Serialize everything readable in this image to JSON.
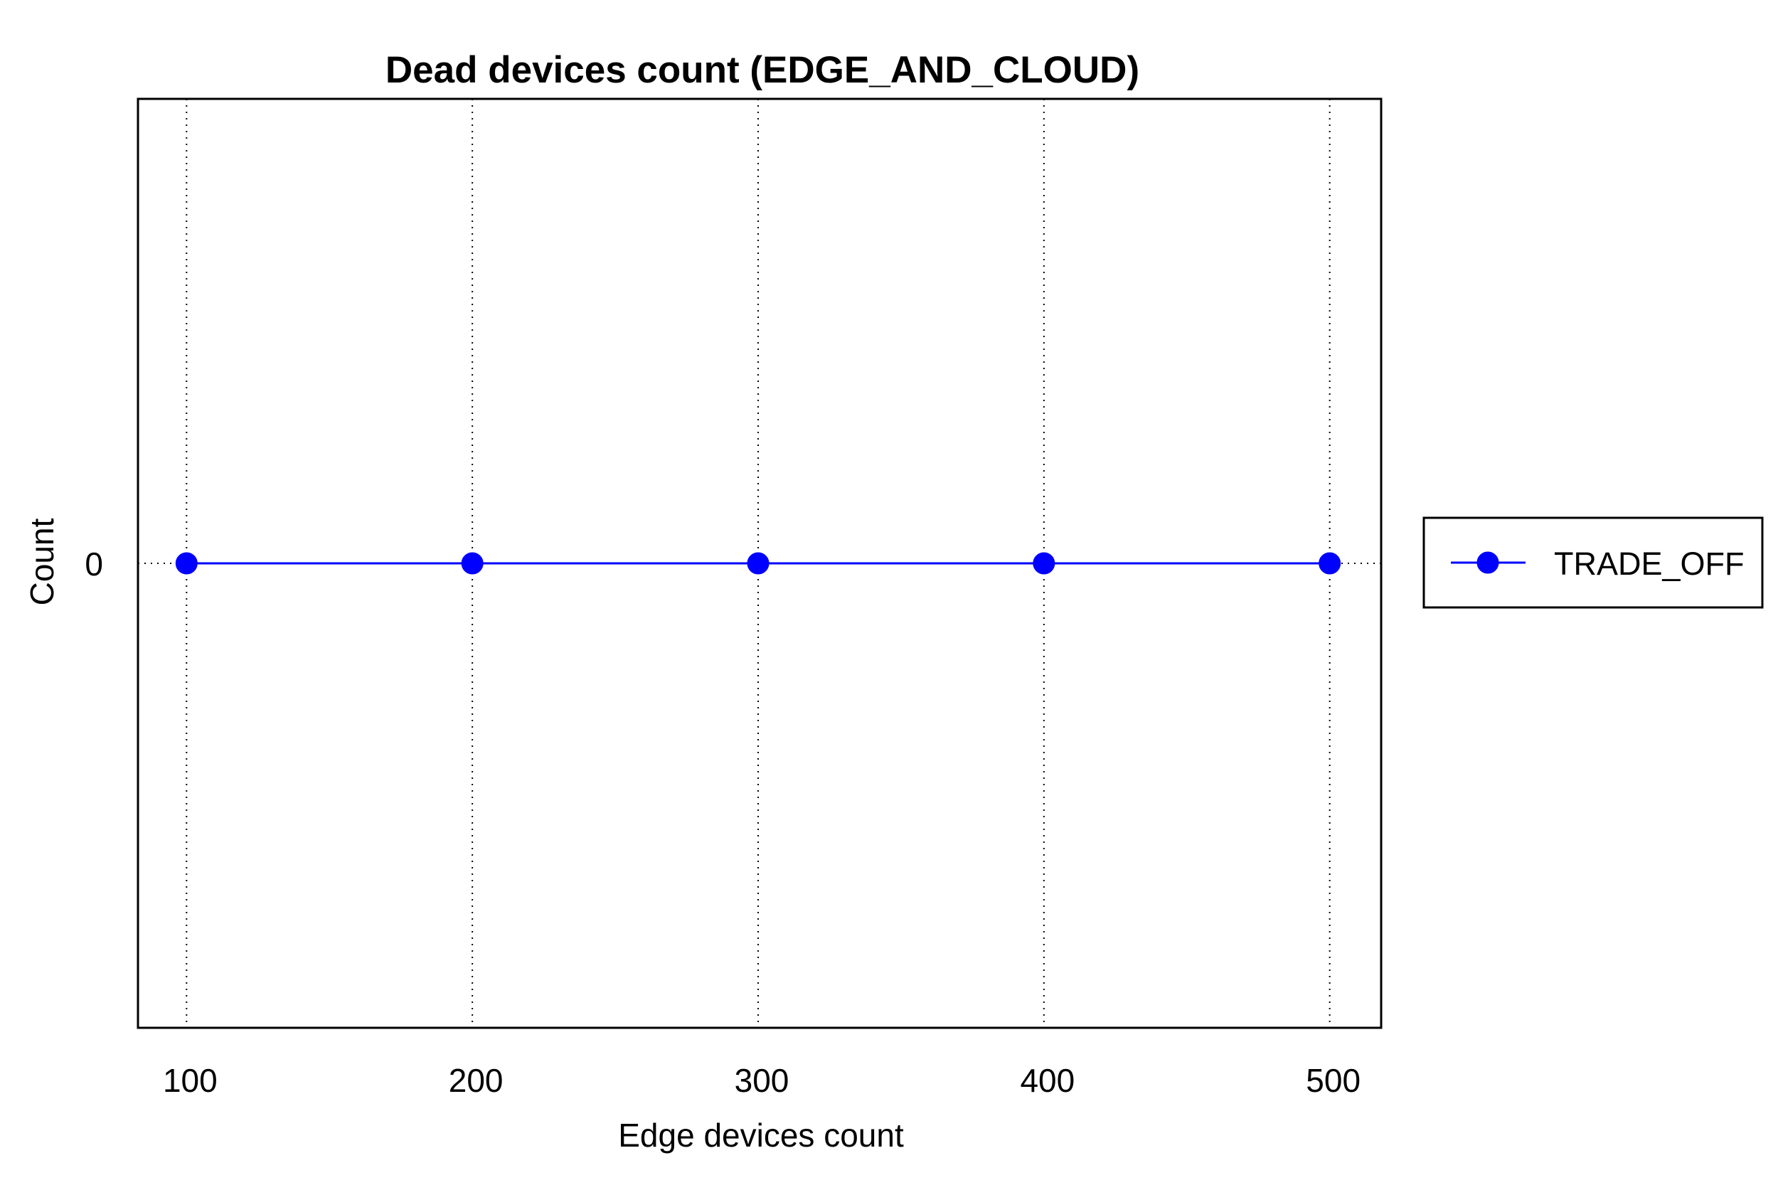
{
  "chart_data": {
    "type": "line",
    "title": "Dead devices count (EDGE_AND_CLOUD)",
    "xlabel": "Edge devices count",
    "ylabel": "Count",
    "x": [
      100,
      200,
      300,
      400,
      500
    ],
    "xlim": [
      83,
      518
    ],
    "ylim": [
      -1,
      1
    ],
    "x_ticks": [
      "100",
      "200",
      "300",
      "400",
      "500"
    ],
    "y_ticks": [
      "0"
    ],
    "grid": "vertical dotted",
    "legend_position": "right",
    "series": [
      {
        "name": "TRADE_OFF",
        "values": [
          0,
          0,
          0,
          0,
          0
        ],
        "color": "#0000ff",
        "marker": "circle"
      }
    ]
  }
}
